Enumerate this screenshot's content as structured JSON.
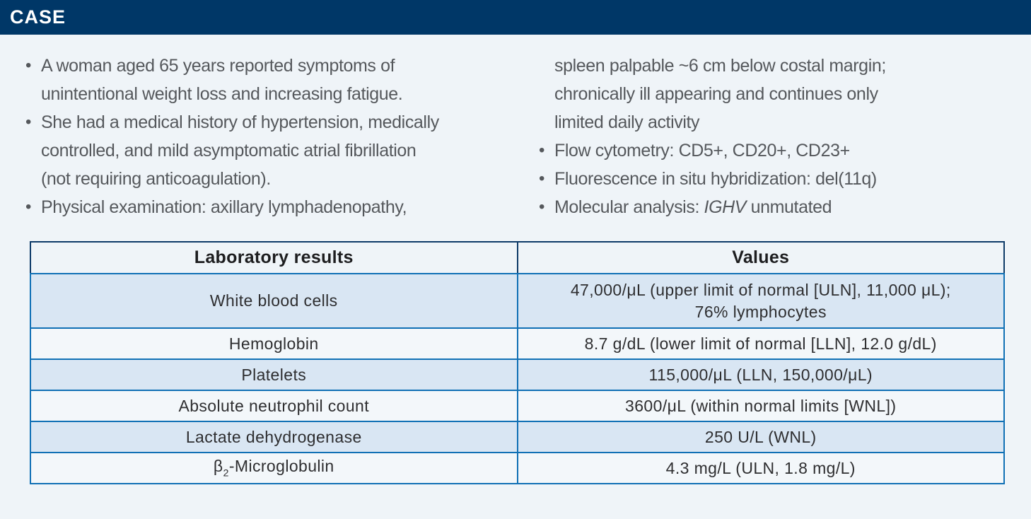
{
  "header": {
    "title": "CASE"
  },
  "case": {
    "left_column": [
      {
        "bullet": true,
        "lines": [
          "A woman aged 65 years reported symptoms of",
          "unintentional weight loss and increasing fatigue."
        ]
      },
      {
        "bullet": true,
        "lines": [
          "She had a medical history of hypertension, medically",
          "controlled, and mild asymptomatic atrial fibrillation",
          "(not requiring anticoagulation)."
        ]
      },
      {
        "bullet": true,
        "lines": [
          "Physical examination: axillary lymphadenopathy,"
        ]
      }
    ],
    "right_column": [
      {
        "bullet": false,
        "lines": [
          "spleen palpable ~6 cm below costal margin;",
          "chronically ill appearing and continues only",
          "limited daily activity"
        ]
      },
      {
        "bullet": true,
        "lines": [
          "Flow cytometry: CD5+, CD20+, CD23+"
        ]
      },
      {
        "bullet": true,
        "lines": [
          "Fluorescence in situ hybridization: del(11q)"
        ]
      },
      {
        "bullet": true,
        "parts": {
          "prefix": "Molecular analysis: ",
          "italic": "IGHV",
          "suffix": " unmutated"
        }
      }
    ],
    "bullet_glyph": "•"
  },
  "table": {
    "headers": [
      "Laboratory results",
      "Values"
    ],
    "rows": [
      {
        "label": "White blood cells",
        "value_lines": [
          "47,000/μL (upper limit of normal [ULN], 11,000 μL);",
          "76% lymphocytes"
        ]
      },
      {
        "label": "Hemoglobin",
        "value_lines": [
          "8.7 g/dL (lower limit of normal [LLN], 12.0 g/dL)"
        ]
      },
      {
        "label": "Platelets",
        "value_lines": [
          "115,000/μL (LLN, 150,000/μL)"
        ]
      },
      {
        "label": "Absolute neutrophil count",
        "value_lines": [
          "3600/μL (within normal limits [WNL])"
        ]
      },
      {
        "label": "Lactate dehydrogenase",
        "value_lines": [
          "250 U/L (WNL)"
        ]
      },
      {
        "label_parts": {
          "base": "β",
          "sub": "2",
          "rest": "-Microglobulin"
        },
        "value_lines": [
          "4.3 mg/L (ULN, 1.8 mg/L)"
        ]
      }
    ]
  },
  "colors": {
    "header_bar": "#003767",
    "page_background": "#eff4f8",
    "table_border_blue": "#1070b5",
    "table_border_navy": "#0d3a68",
    "shaded_row": "#d9e6f3",
    "body_text_gray": "#55585c"
  }
}
